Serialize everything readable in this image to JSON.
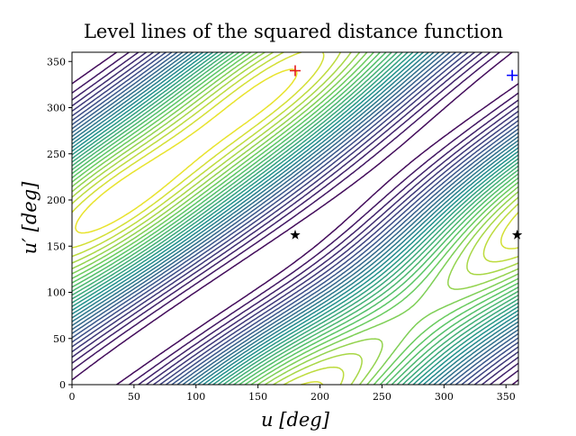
{
  "chart_data": {
    "type": "contour",
    "title": "Level lines of the squared distance function",
    "x_label": "u [deg]",
    "y_label": "u′ [deg]",
    "xlim": [
      0,
      360
    ],
    "ylim": [
      0,
      360
    ],
    "xticks": [
      0,
      50,
      100,
      150,
      200,
      250,
      300,
      350
    ],
    "yticks": [
      0,
      50,
      100,
      150,
      200,
      250,
      300,
      350
    ],
    "series": [
      {
        "marker": "plus",
        "color": "#e41a1c",
        "x": [
          180
        ],
        "y": [
          340
        ]
      },
      {
        "marker": "plus",
        "color": "#0000ff",
        "x": [
          355
        ],
        "y": [
          335
        ]
      },
      {
        "marker": "star",
        "color": "#000000",
        "x": [
          180,
          359
        ],
        "y": [
          162,
          162
        ]
      }
    ]
  }
}
